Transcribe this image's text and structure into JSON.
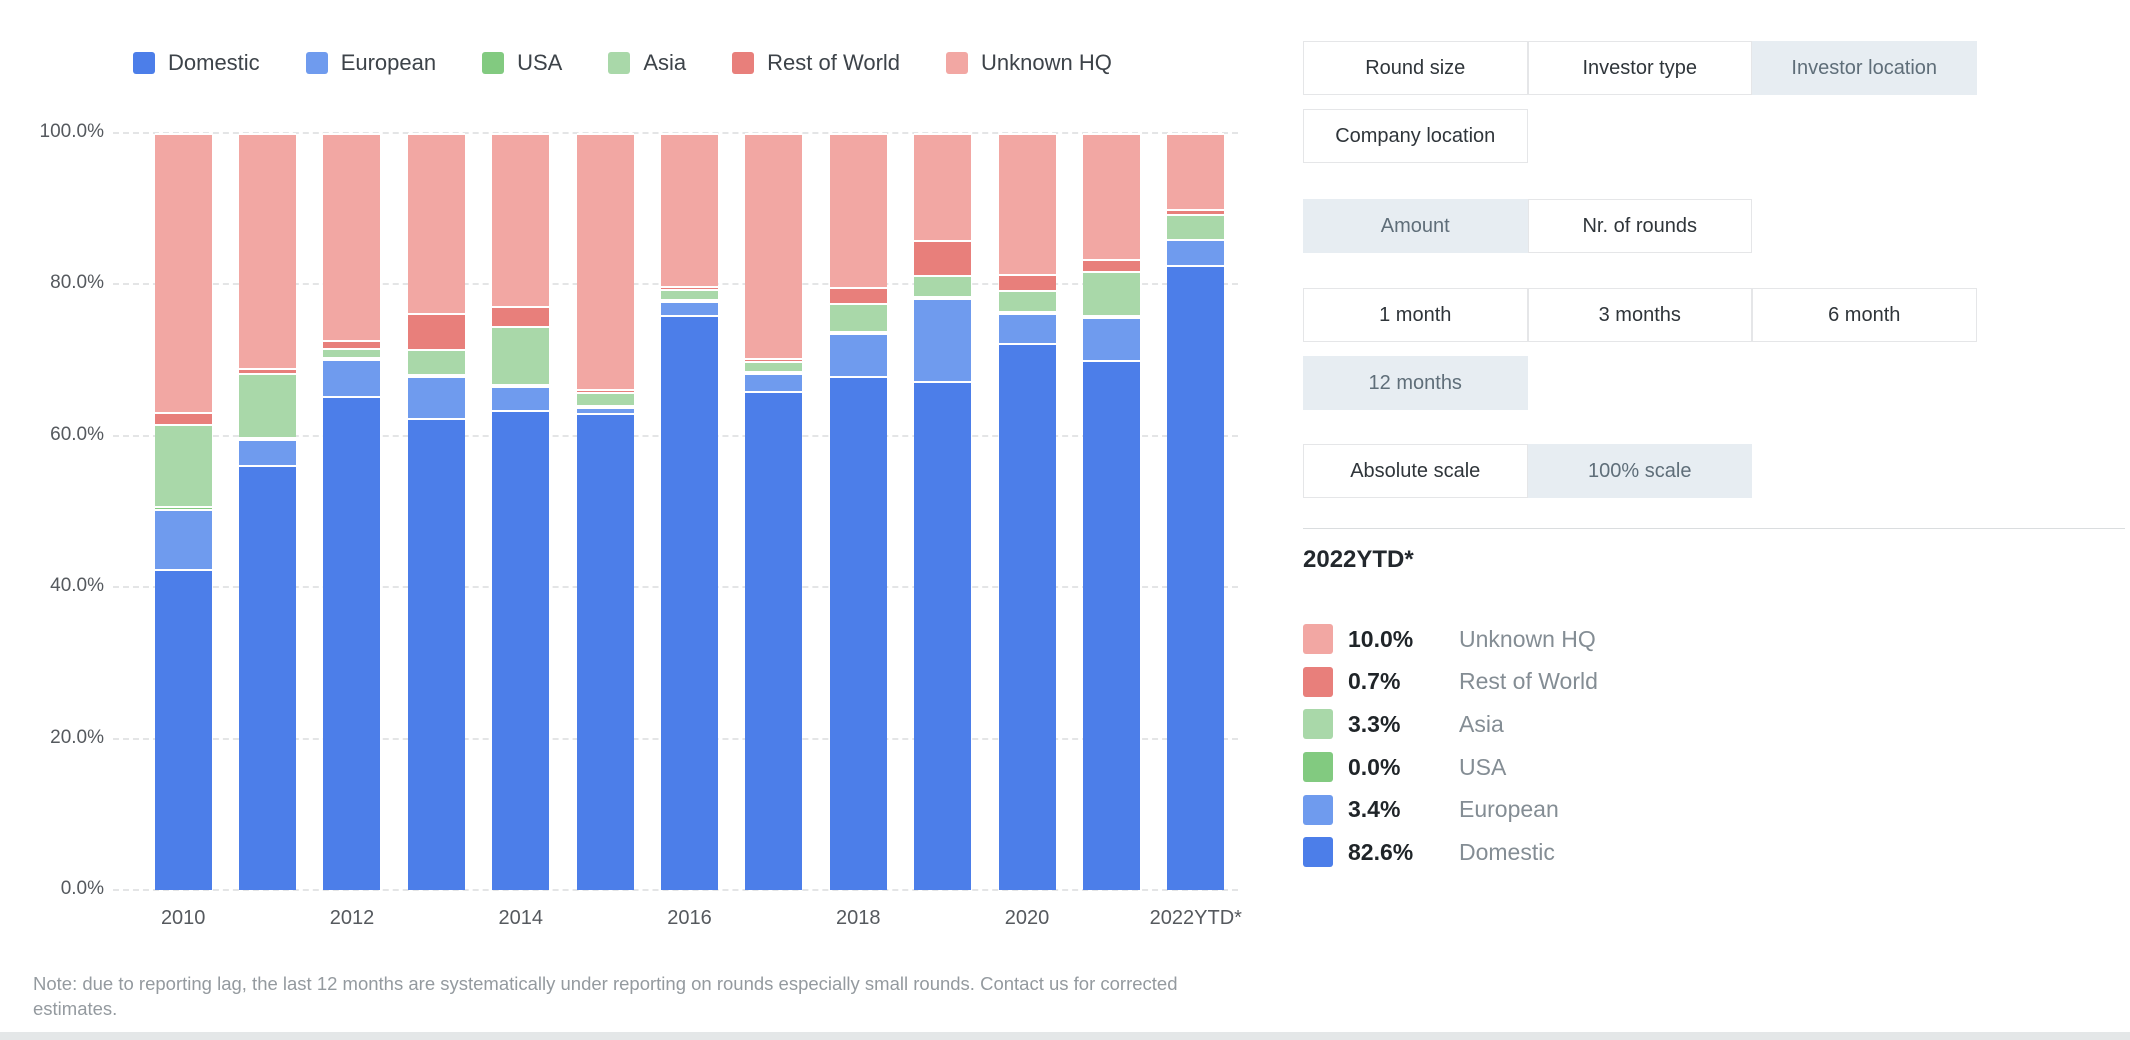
{
  "legend": {
    "items": [
      {
        "label": "Domestic",
        "color": "#4c7ee9"
      },
      {
        "label": "European",
        "color": "#6f9bee"
      },
      {
        "label": "USA",
        "color": "#82ca80"
      },
      {
        "label": "Asia",
        "color": "#a9d8a9"
      },
      {
        "label": "Rest of World",
        "color": "#e87f7b"
      },
      {
        "label": "Unknown HQ",
        "color": "#f2a7a3"
      }
    ]
  },
  "chart_data": {
    "type": "bar",
    "subtype": "stacked-100-percent",
    "categories": [
      "2010",
      "2011",
      "2012",
      "2013",
      "2014",
      "2015",
      "2016",
      "2017",
      "2018",
      "2019",
      "2020",
      "2021",
      "2022YTD*"
    ],
    "x_ticks": [
      {
        "index": 0,
        "label": "2010"
      },
      {
        "index": 2,
        "label": "2012"
      },
      {
        "index": 4,
        "label": "2014"
      },
      {
        "index": 6,
        "label": "2016"
      },
      {
        "index": 8,
        "label": "2018"
      },
      {
        "index": 10,
        "label": "2020"
      },
      {
        "index": 12,
        "label": "2022YTD*"
      }
    ],
    "y_ticks": [
      "100.0%",
      "80.0%",
      "60.0%",
      "40.0%",
      "20.0%",
      "0.0%"
    ],
    "ylim": [
      0,
      100
    ],
    "grid": "dashed-horizontal",
    "legend_position": "top",
    "series": [
      {
        "name": "Domestic",
        "color": "#4c7ee9",
        "values": [
          42.4,
          56.2,
          65.2,
          62.4,
          63.4,
          63.1,
          76.0,
          65.9,
          67.9,
          67.2,
          72.3,
          70.1,
          82.6
        ]
      },
      {
        "name": "European",
        "color": "#6f9bee",
        "values": [
          8.0,
          3.4,
          4.9,
          5.5,
          3.2,
          0.8,
          1.9,
          2.4,
          5.7,
          11.0,
          4.0,
          5.6,
          3.4
        ]
      },
      {
        "name": "USA",
        "color": "#82ca80",
        "values": [
          0.3,
          0.3,
          0.3,
          0.3,
          0.3,
          0.2,
          0.2,
          0.2,
          0.3,
          0.3,
          0.2,
          0.2,
          0.0
        ]
      },
      {
        "name": "Asia",
        "color": "#a9d8a9",
        "values": [
          10.8,
          8.4,
          1.2,
          3.3,
          7.6,
          1.7,
          1.3,
          1.4,
          3.6,
          2.8,
          2.8,
          5.8,
          3.3
        ]
      },
      {
        "name": "Rest of World",
        "color": "#e87f7b",
        "values": [
          1.7,
          0.7,
          1.1,
          4.7,
          2.6,
          0.4,
          0.4,
          0.4,
          2.1,
          4.6,
          2.1,
          1.7,
          0.7
        ]
      },
      {
        "name": "Unknown HQ",
        "color": "#f2a7a3",
        "values": [
          36.8,
          31.0,
          27.3,
          23.8,
          22.9,
          33.8,
          20.2,
          29.7,
          20.4,
          14.1,
          18.6,
          16.6,
          10.0
        ]
      }
    ]
  },
  "filters": {
    "groups": [
      {
        "buttons": [
          {
            "label": "Round size",
            "selected": false
          },
          {
            "label": "Investor type",
            "selected": false
          },
          {
            "label": "Investor location",
            "selected": true
          },
          {
            "label": "Company location",
            "selected": false
          }
        ]
      },
      {
        "buttons": [
          {
            "label": "Amount",
            "selected": true
          },
          {
            "label": "Nr. of rounds",
            "selected": false
          }
        ]
      },
      {
        "buttons": [
          {
            "label": "1 month",
            "selected": false
          },
          {
            "label": "3 months",
            "selected": false
          },
          {
            "label": "6 month",
            "selected": false
          },
          {
            "label": "12 months",
            "selected": true
          }
        ]
      },
      {
        "buttons": [
          {
            "label": "Absolute scale",
            "selected": false
          },
          {
            "label": "100% scale",
            "selected": true
          }
        ]
      }
    ]
  },
  "detail_panel": {
    "heading": "2022YTD*",
    "rows": [
      {
        "value": "10.0%",
        "label": "Unknown HQ",
        "color": "#f2a7a3"
      },
      {
        "value": "0.7%",
        "label": "Rest of World",
        "color": "#e87f7b"
      },
      {
        "value": "3.3%",
        "label": "Asia",
        "color": "#a9d8a9"
      },
      {
        "value": "0.0%",
        "label": "USA",
        "color": "#82ca80"
      },
      {
        "value": "3.4%",
        "label": "European",
        "color": "#6f9bee"
      },
      {
        "value": "82.6%",
        "label": "Domestic",
        "color": "#4c7ee9"
      }
    ]
  },
  "note": "Note: due to reporting lag, the last 12 months are systematically under reporting on rounds especially small rounds. Contact us for corrected estimates."
}
